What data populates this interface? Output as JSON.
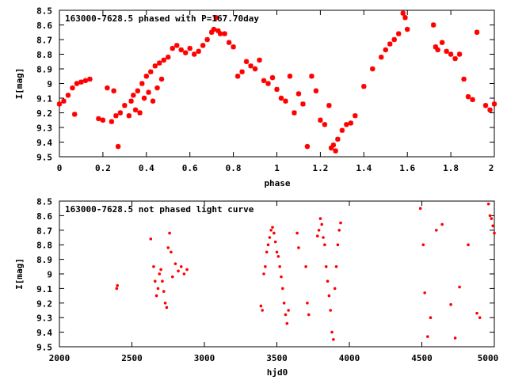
{
  "chart_data": [
    {
      "type": "scatter",
      "title": "163000-7628.5 phased with P=167.70day",
      "xlabel": "phase",
      "ylabel": "I[mag]",
      "xlim": [
        0,
        2
      ],
      "ylim": [
        8.5,
        9.5
      ],
      "y_inverted": true,
      "xticks": [
        "0",
        "0.2",
        "0.4",
        "0.6",
        "0.8",
        "1",
        "1.2",
        "1.4",
        "1.6",
        "1.8",
        "2"
      ],
      "yticks": [
        "8.5",
        "8.6",
        "8.7",
        "8.8",
        "8.9",
        "9",
        "9.1",
        "9.2",
        "9.3",
        "9.4",
        "9.5"
      ],
      "marker": "star",
      "color": "#ff0000",
      "grid": false,
      "series": [
        {
          "x": [
            0.0,
            0.02,
            0.04,
            0.06,
            0.07,
            0.08,
            0.1,
            0.12,
            0.14,
            0.18,
            0.2,
            0.22,
            0.24,
            0.25,
            0.26,
            0.27,
            0.28,
            0.3,
            0.32,
            0.33,
            0.34,
            0.35,
            0.36,
            0.37,
            0.38,
            0.39,
            0.4,
            0.41,
            0.42,
            0.43,
            0.44,
            0.45,
            0.46,
            0.47,
            0.48,
            0.5,
            0.52,
            0.54,
            0.56,
            0.58,
            0.6,
            0.62,
            0.64,
            0.66,
            0.68,
            0.7,
            0.71,
            0.72,
            0.73,
            0.74,
            0.76,
            0.78,
            0.8,
            0.82,
            0.84,
            0.86,
            0.88,
            0.9,
            0.92,
            0.94,
            0.96,
            0.98,
            1.0,
            1.02,
            1.04,
            1.06,
            1.08,
            1.1,
            1.12,
            1.14,
            1.16,
            1.18,
            1.2,
            1.22,
            1.24,
            1.25,
            1.26,
            1.27,
            1.28,
            1.3,
            1.32,
            1.34,
            1.36,
            1.4,
            1.44,
            1.48,
            1.5,
            1.52,
            1.54,
            1.56,
            1.58,
            1.59,
            1.6,
            1.72,
            1.73,
            1.74,
            1.76,
            1.78,
            1.8,
            1.82,
            1.84,
            1.86,
            1.88,
            1.9,
            1.92,
            1.96,
            1.98,
            2.0
          ],
          "y": [
            9.14,
            9.12,
            9.08,
            9.03,
            9.21,
            9.0,
            8.99,
            8.98,
            8.97,
            9.24,
            9.25,
            9.03,
            9.26,
            9.05,
            9.22,
            9.43,
            9.2,
            9.15,
            9.22,
            9.12,
            9.08,
            9.18,
            9.05,
            9.2,
            9.0,
            9.1,
            8.95,
            9.06,
            8.92,
            9.12,
            8.88,
            9.03,
            8.86,
            8.97,
            8.84,
            8.82,
            8.76,
            8.74,
            8.77,
            8.79,
            8.76,
            8.8,
            8.78,
            8.74,
            8.7,
            8.65,
            8.63,
            8.55,
            8.64,
            8.66,
            8.66,
            8.72,
            8.75,
            8.95,
            8.92,
            8.85,
            8.88,
            8.9,
            8.84,
            8.98,
            9.0,
            8.96,
            9.04,
            9.1,
            9.12,
            8.95,
            9.2,
            9.07,
            9.14,
            9.43,
            8.95,
            9.05,
            9.25,
            9.28,
            9.15,
            9.44,
            9.42,
            9.46,
            9.38,
            9.32,
            9.28,
            9.27,
            9.22,
            9.02,
            8.9,
            8.82,
            8.77,
            8.73,
            8.7,
            8.66,
            8.52,
            8.55,
            8.63,
            8.6,
            8.75,
            8.77,
            8.72,
            8.78,
            8.8,
            8.83,
            8.8,
            8.97,
            9.09,
            9.11,
            8.65,
            9.15,
            9.18,
            9.14
          ]
        }
      ]
    },
    {
      "type": "scatter",
      "title": "163000-7628.5 not phased light curve",
      "xlabel": "hjd0",
      "ylabel": "I[mag]",
      "xlim": [
        2000,
        5000
      ],
      "ylim": [
        8.5,
        9.5
      ],
      "y_inverted": true,
      "xticks": [
        "2000",
        "2500",
        "3000",
        "3500",
        "4000",
        "4500",
        "5000"
      ],
      "yticks": [
        "8.5",
        "8.6",
        "8.7",
        "8.8",
        "8.9",
        "9",
        "9.1",
        "9.2",
        "9.3",
        "9.4",
        "9.5"
      ],
      "marker": "dot",
      "color": "#ff0000",
      "grid": false,
      "series": [
        {
          "x": [
            2395,
            2400,
            2630,
            2650,
            2660,
            2670,
            2680,
            2690,
            2700,
            2710,
            2720,
            2730,
            2740,
            2750,
            2760,
            2770,
            2780,
            2800,
            2820,
            2840,
            2860,
            2880,
            3390,
            3400,
            3410,
            3420,
            3430,
            3440,
            3450,
            3460,
            3470,
            3480,
            3490,
            3500,
            3510,
            3520,
            3530,
            3540,
            3550,
            3560,
            3570,
            3580,
            3640,
            3650,
            3700,
            3710,
            3720,
            3780,
            3790,
            3800,
            3810,
            3820,
            3830,
            3840,
            3850,
            3860,
            3870,
            3880,
            3890,
            3900,
            3910,
            3920,
            3930,
            3940,
            4490,
            4510,
            4520,
            4540,
            4560,
            4600,
            4640,
            4700,
            4730,
            4760,
            4820,
            4880,
            4900,
            4960,
            4970,
            4980,
            4990,
            5000
          ],
          "y": [
            9.1,
            9.08,
            8.76,
            8.95,
            9.05,
            9.15,
            9.1,
            9.0,
            8.97,
            9.05,
            9.12,
            9.2,
            9.23,
            8.82,
            8.72,
            8.85,
            9.02,
            8.93,
            8.98,
            8.95,
            9.0,
            8.97,
            9.22,
            9.25,
            9.0,
            8.95,
            8.85,
            8.8,
            8.75,
            8.7,
            8.68,
            8.72,
            8.78,
            8.85,
            8.88,
            8.95,
            9.02,
            9.1,
            9.2,
            9.28,
            9.34,
            9.25,
            8.72,
            8.82,
            8.95,
            9.2,
            9.28,
            8.74,
            8.7,
            8.62,
            8.66,
            8.75,
            8.8,
            8.95,
            9.05,
            9.15,
            9.25,
            9.4,
            9.45,
            9.1,
            8.95,
            8.8,
            8.7,
            8.65,
            8.55,
            8.8,
            9.13,
            9.43,
            9.3,
            8.7,
            8.66,
            9.21,
            9.44,
            9.09,
            8.8,
            9.27,
            9.3,
            8.52,
            8.6,
            8.62,
            8.67,
            8.72
          ]
        }
      ]
    }
  ]
}
